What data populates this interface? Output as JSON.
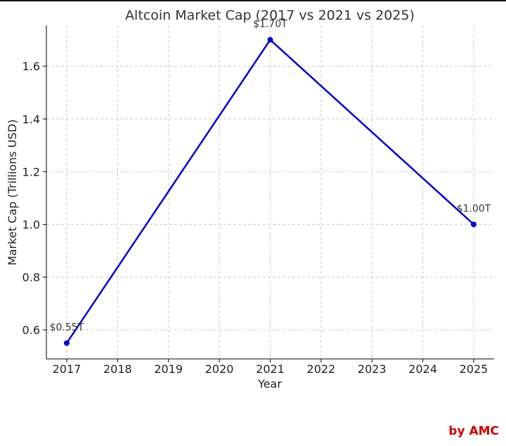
{
  "chart_data": {
    "type": "line",
    "title": "Altcoin Market Cap (2017 vs 2021 vs 2025)",
    "xlabel": "Year",
    "ylabel": "Market Cap (Trillions USD)",
    "x_ticks": [
      "2017",
      "2018",
      "2019",
      "2020",
      "2021",
      "2022",
      "2023",
      "2024",
      "2025"
    ],
    "y_ticks": [
      "0.6",
      "0.8",
      "1.0",
      "1.2",
      "1.4",
      "1.6"
    ],
    "xlim": [
      2016.6,
      2025.4
    ],
    "ylim": [
      0.49,
      1.755
    ],
    "grid": true,
    "series": [
      {
        "color": "#0000cc",
        "points": [
          {
            "x": 2017,
            "y": 0.55,
            "label": "$0.55T"
          },
          {
            "x": 2021,
            "y": 1.7,
            "label": "$1.70T"
          },
          {
            "x": 2025,
            "y": 1.0,
            "label": "$1.00T"
          }
        ]
      }
    ]
  },
  "watermark": "by AMC"
}
